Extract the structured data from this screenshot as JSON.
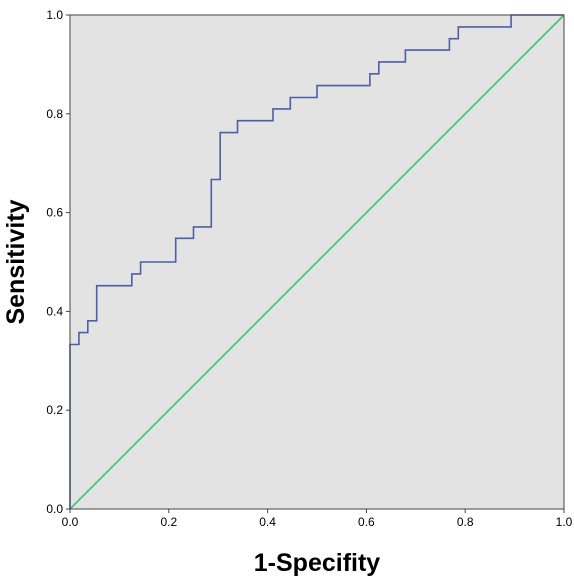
{
  "chart_data": {
    "type": "line",
    "title": "",
    "xlabel": "1-Specifity",
    "ylabel": "Sensitivity",
    "xlim": [
      0,
      1
    ],
    "ylim": [
      0,
      1
    ],
    "grid": false,
    "legend": "none",
    "x_ticks": [
      "0.0",
      "0.2",
      "0.4",
      "0.6",
      "0.8",
      "1.0"
    ],
    "y_ticks": [
      "0.0",
      "0.2",
      "0.4",
      "0.6",
      "0.8",
      "1.0"
    ],
    "series": [
      {
        "color": "#4d5fa6",
        "step": true,
        "points": [
          [
            0.0,
            0.0
          ],
          [
            0.0,
            0.333
          ],
          [
            0.018,
            0.333
          ],
          [
            0.018,
            0.357
          ],
          [
            0.036,
            0.357
          ],
          [
            0.036,
            0.381
          ],
          [
            0.054,
            0.381
          ],
          [
            0.054,
            0.452
          ],
          [
            0.125,
            0.452
          ],
          [
            0.125,
            0.476
          ],
          [
            0.143,
            0.476
          ],
          [
            0.143,
            0.5
          ],
          [
            0.214,
            0.5
          ],
          [
            0.214,
            0.548
          ],
          [
            0.25,
            0.548
          ],
          [
            0.25,
            0.571
          ],
          [
            0.286,
            0.571
          ],
          [
            0.286,
            0.667
          ],
          [
            0.304,
            0.667
          ],
          [
            0.304,
            0.762
          ],
          [
            0.339,
            0.762
          ],
          [
            0.339,
            0.786
          ],
          [
            0.411,
            0.786
          ],
          [
            0.411,
            0.81
          ],
          [
            0.446,
            0.81
          ],
          [
            0.446,
            0.833
          ],
          [
            0.5,
            0.833
          ],
          [
            0.5,
            0.857
          ],
          [
            0.607,
            0.857
          ],
          [
            0.607,
            0.881
          ],
          [
            0.625,
            0.881
          ],
          [
            0.625,
            0.905
          ],
          [
            0.679,
            0.905
          ],
          [
            0.679,
            0.929
          ],
          [
            0.768,
            0.929
          ],
          [
            0.768,
            0.952
          ],
          [
            0.786,
            0.952
          ],
          [
            0.786,
            0.976
          ],
          [
            0.893,
            0.976
          ],
          [
            0.893,
            1.0
          ],
          [
            1.0,
            1.0
          ]
        ]
      },
      {
        "color": "#3cc46a",
        "step": false,
        "points": [
          [
            0,
            0
          ],
          [
            1,
            1
          ]
        ]
      }
    ]
  },
  "colors": {
    "plot_background": "#e3e3e3",
    "frame": "#444444"
  }
}
